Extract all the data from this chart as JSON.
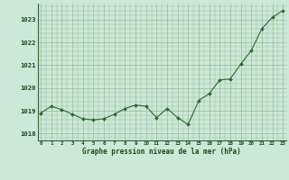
{
  "x": [
    0,
    1,
    2,
    3,
    4,
    5,
    6,
    7,
    8,
    9,
    10,
    11,
    12,
    13,
    14,
    15,
    16,
    17,
    18,
    19,
    20,
    21,
    22,
    23
  ],
  "y": [
    1018.9,
    1019.2,
    1019.05,
    1018.85,
    1018.65,
    1018.6,
    1018.65,
    1018.85,
    1019.1,
    1019.25,
    1019.2,
    1018.7,
    1019.1,
    1018.7,
    1018.4,
    1019.45,
    1019.75,
    1020.35,
    1020.4,
    1021.05,
    1021.65,
    1022.6,
    1023.1,
    1023.4
  ],
  "line_color": "#2d6a2d",
  "marker_color": "#2d6a2d",
  "bg_color": "#cce8d8",
  "plot_bg_color": "#cce8d8",
  "grid_color": "#99bb99",
  "title": "Graphe pression niveau de la mer (hPa)",
  "title_color": "#1a4a1a",
  "xlabel_ticks": [
    0,
    1,
    2,
    3,
    4,
    5,
    6,
    7,
    8,
    9,
    10,
    11,
    12,
    13,
    14,
    15,
    16,
    17,
    18,
    19,
    20,
    21,
    22,
    23
  ],
  "ytick_labels": [
    1018,
    1019,
    1020,
    1021,
    1022,
    1023
  ],
  "ylim": [
    1017.7,
    1023.7
  ],
  "xlim": [
    -0.3,
    23.3
  ]
}
